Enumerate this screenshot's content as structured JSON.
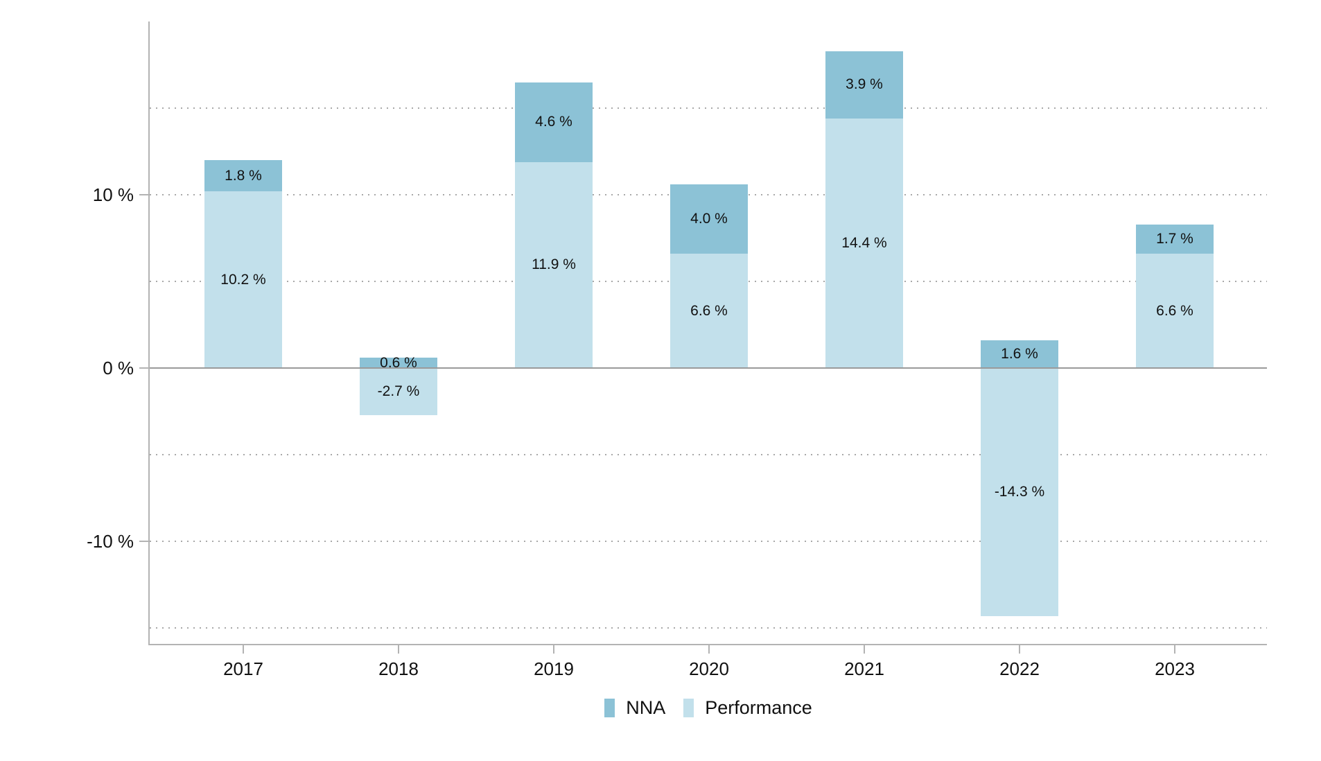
{
  "chart_data": {
    "type": "bar",
    "stacked": true,
    "title": "",
    "xlabel": "",
    "ylabel": "",
    "categories": [
      "2017",
      "2018",
      "2019",
      "2020",
      "2021",
      "2022",
      "2023"
    ],
    "series": [
      {
        "name": "NNA",
        "color": "#8cc2d6",
        "values": [
          1.8,
          0.6,
          4.6,
          4.0,
          3.9,
          1.6,
          1.7
        ],
        "labels": [
          "1.8 %",
          "0.6 %",
          "4.6 %",
          "4.0 %",
          "3.9 %",
          "1.6 %",
          "1.7 %"
        ]
      },
      {
        "name": "Performance",
        "color": "#c2e0eb",
        "values": [
          10.2,
          -2.7,
          11.9,
          6.6,
          14.4,
          -14.3,
          6.6
        ],
        "labels": [
          "10.2 %",
          "-2.7 %",
          "11.9 %",
          "6.6 %",
          "14.4 %",
          "-14.3 %",
          "6.6 %"
        ]
      }
    ],
    "stack_totals": [
      12.0,
      -2.1,
      16.5,
      10.6,
      18.3,
      -12.7,
      8.3
    ],
    "y_axis": {
      "ylim": [
        -16,
        20
      ],
      "ticks": [
        {
          "value": 10,
          "label": "10 %"
        },
        {
          "value": 0,
          "label": "0 %"
        },
        {
          "value": -10,
          "label": "-10 %"
        }
      ],
      "gridlines": [
        15,
        10,
        5,
        -5,
        -10,
        -15
      ],
      "zero_line": 0,
      "grid_style": "dotted"
    },
    "legend": {
      "position": "bottom",
      "entries": [
        {
          "label": "NNA",
          "color": "#8cc2d6"
        },
        {
          "label": "Performance",
          "color": "#c2e0eb"
        }
      ]
    },
    "colors": {
      "axis": "#b3b3b3",
      "grid": "#a8a8a8",
      "zero_line": "#9a9a9a",
      "text": "#111111"
    }
  }
}
